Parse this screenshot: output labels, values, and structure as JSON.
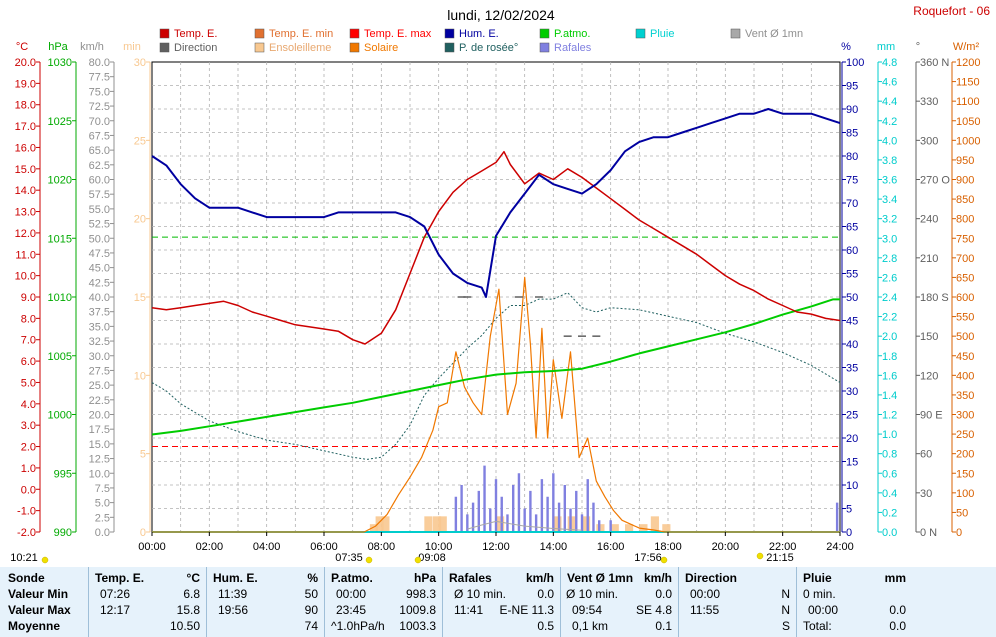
{
  "header": {
    "title": "lundi, 12/02/2024",
    "station": "Roquefort - 06"
  },
  "legend": [
    {
      "label": "Temp. E.",
      "color": "#cc0000"
    },
    {
      "label": "Temp. E. min",
      "color": "#e07030"
    },
    {
      "label": "Temp. E. max",
      "color": "#ff0000"
    },
    {
      "label": "Hum. E.",
      "color": "#0000a0"
    },
    {
      "label": "P.atmo.",
      "color": "#00cc00"
    },
    {
      "label": "Pluie",
      "color": "#00d0d0"
    },
    {
      "label": "Vent Ø 1mn",
      "color": "#a8a8a8"
    },
    {
      "label": "Direction",
      "color": "#606060"
    },
    {
      "label": "Ensoleilleme",
      "color": "#f8c890"
    },
    {
      "label": "Solaire",
      "color": "#f07800"
    },
    {
      "label": "P. de rosée°",
      "color": "#206060"
    },
    {
      "label": "Rafales",
      "color": "#8080e0"
    }
  ],
  "axes": {
    "temp": {
      "unit": "°C",
      "color": "#cc0000",
      "ticks": [
        "20.0",
        "19.0",
        "18.0",
        "17.0",
        "16.0",
        "15.0",
        "14.0",
        "13.0",
        "12.0",
        "11.0",
        "10.0",
        "9.0",
        "8.0",
        "7.0",
        "6.0",
        "5.0",
        "4.0",
        "3.0",
        "2.0",
        "1.0",
        "0.0",
        "-1.0",
        "-2.0"
      ]
    },
    "hpa": {
      "unit": "hPa",
      "color": "#00aa00",
      "ticks": [
        "1030",
        "1025",
        "1020",
        "1015",
        "1010",
        "1005",
        "1000",
        "995",
        "990"
      ]
    },
    "kmh": {
      "unit": "km/h",
      "color": "#909090",
      "ticks": [
        "80.0",
        "77.5",
        "75.0",
        "72.5",
        "70.0",
        "67.5",
        "65.0",
        "62.5",
        "60.0",
        "57.5",
        "55.0",
        "52.5",
        "50.0",
        "47.5",
        "45.0",
        "42.5",
        "40.0",
        "37.5",
        "35.0",
        "32.5",
        "30.0",
        "27.5",
        "25.0",
        "22.5",
        "20.0",
        "17.5",
        "15.0",
        "12.5",
        "10.0",
        "7.5",
        "5.0",
        "2.5",
        "0.0"
      ]
    },
    "min": {
      "unit": "min",
      "color": "#f8c890",
      "ticks": [
        "30",
        "25",
        "20",
        "15",
        "10",
        "5",
        "0"
      ]
    },
    "pct": {
      "unit": "%",
      "color": "#0000a0",
      "ticks": [
        "100",
        "95",
        "90",
        "85",
        "80",
        "75",
        "70",
        "65",
        "60",
        "55",
        "50",
        "45",
        "40",
        "35",
        "30",
        "25",
        "20",
        "15",
        "10",
        "5",
        "0"
      ]
    },
    "mm": {
      "unit": "mm",
      "color": "#00cccc",
      "ticks": [
        "4.8",
        "4.6",
        "4.4",
        "4.2",
        "4.0",
        "3.8",
        "3.6",
        "3.4",
        "3.2",
        "3.0",
        "2.8",
        "2.6",
        "2.4",
        "2.2",
        "2.0",
        "1.8",
        "1.6",
        "1.4",
        "1.2",
        "1.0",
        "0.8",
        "0.6",
        "0.4",
        "0.2",
        "0.0"
      ]
    },
    "deg": {
      "unit": "°",
      "color": "#606060",
      "ticks": [
        "360 N",
        "330",
        "300",
        "270 O",
        "240",
        "210",
        "180 S",
        "150",
        "120",
        "90 E",
        "60",
        "30",
        "0 N"
      ]
    },
    "wm2": {
      "unit": "W/m²",
      "color": "#d86000",
      "ticks": [
        "1200",
        "1150",
        "1100",
        "1050",
        "1000",
        "950",
        "900",
        "850",
        "800",
        "750",
        "700",
        "650",
        "600",
        "550",
        "500",
        "450",
        "400",
        "350",
        "300",
        "250",
        "200",
        "150",
        "100",
        "50",
        "0"
      ]
    },
    "x_ticks": [
      "00:00",
      "02:00",
      "04:00",
      "06:00",
      "08:00",
      "10:00",
      "12:00",
      "14:00",
      "16:00",
      "18:00",
      "20:00",
      "22:00",
      "24:00"
    ]
  },
  "time_markers": [
    "10:21",
    "07:35",
    "09:08",
    "17:56",
    "21:15"
  ],
  "chart_data": {
    "type": "line",
    "title": "lundi, 12/02/2024",
    "x_unit": "hour",
    "xlim": [
      0,
      24
    ],
    "series": [
      {
        "name": "Temp. E.",
        "axis": "°C",
        "color": "#cc0000",
        "x": [
          0,
          0.5,
          1,
          1.5,
          2,
          2.5,
          3,
          3.5,
          4,
          4.5,
          5,
          5.5,
          6,
          6.5,
          7,
          7.43,
          8,
          8.5,
          9,
          9.5,
          10,
          10.5,
          11,
          11.5,
          12,
          12.28,
          12.5,
          13,
          13.5,
          14,
          14.5,
          15,
          15.5,
          16,
          16.5,
          17,
          17.5,
          18,
          18.5,
          19,
          19.5,
          20,
          20.5,
          21,
          21.5,
          22,
          22.5,
          23,
          23.5,
          24
        ],
        "values": [
          8.5,
          8.4,
          8.5,
          8.6,
          8.7,
          8.8,
          8.6,
          8.3,
          8.1,
          7.9,
          7.7,
          7.6,
          7.5,
          7.4,
          7.0,
          6.8,
          7.3,
          8.4,
          10.1,
          11.8,
          13.0,
          13.9,
          14.5,
          14.9,
          15.3,
          15.8,
          15.2,
          14.3,
          14.8,
          14.5,
          15.0,
          14.6,
          14.1,
          13.6,
          13.1,
          12.6,
          12.2,
          11.8,
          11.4,
          11.0,
          10.5,
          10.0,
          9.6,
          9.3,
          8.9,
          8.6,
          8.3,
          8.2,
          8.0,
          7.9
        ]
      },
      {
        "name": "Hum. E.",
        "axis": "%",
        "color": "#0000a0",
        "x": [
          0,
          0.5,
          1,
          1.5,
          2,
          2.5,
          3,
          3.5,
          4,
          4.5,
          5,
          5.5,
          6,
          6.5,
          7,
          7.5,
          8,
          8.5,
          9,
          9.5,
          10,
          10.5,
          11,
          11.5,
          11.65,
          12,
          12.5,
          13,
          13.5,
          14,
          14.5,
          15,
          15.5,
          16,
          16.5,
          17,
          17.5,
          18,
          18.5,
          19,
          19.5,
          20,
          20.5,
          21,
          21.5,
          22,
          22.5,
          23,
          23.5,
          24
        ],
        "values": [
          80,
          78,
          74,
          71,
          69,
          69,
          69,
          68,
          67,
          67,
          67,
          67,
          67,
          68,
          68,
          68,
          68,
          68,
          67,
          65,
          59,
          55,
          53,
          52,
          50,
          63,
          68,
          72,
          76,
          74,
          73,
          72,
          74,
          77,
          81,
          83,
          84,
          84,
          85,
          86,
          87,
          88,
          89,
          89,
          90,
          89,
          89,
          89,
          88,
          87
        ]
      },
      {
        "name": "P.atmo.",
        "axis": "hPa",
        "color": "#00cc00",
        "x": [
          0,
          1,
          2,
          3,
          4,
          5,
          6,
          7,
          8,
          9,
          10,
          11,
          12,
          13,
          14,
          15,
          16,
          17,
          18,
          19,
          20,
          21,
          22,
          23,
          23.75,
          24
        ],
        "values": [
          998.3,
          998.6,
          999.0,
          999.4,
          999.8,
          1000.2,
          1000.6,
          1001.0,
          1001.5,
          1002.0,
          1002.5,
          1003.0,
          1003.4,
          1003.6,
          1003.7,
          1003.9,
          1004.5,
          1005.2,
          1005.8,
          1006.4,
          1007.0,
          1007.7,
          1008.5,
          1009.2,
          1009.8,
          1009.8
        ]
      },
      {
        "name": "P. de rosée°",
        "axis": "°C",
        "color": "#206060",
        "x": [
          0,
          0.5,
          1,
          1.5,
          2,
          3,
          4,
          5,
          6,
          7,
          7.5,
          8,
          8.5,
          9,
          9.5,
          10,
          10.5,
          11,
          11.5,
          12,
          12.5,
          13,
          13.5,
          14,
          14.5,
          15,
          15.5,
          16,
          17,
          18,
          19,
          20,
          21,
          22,
          23,
          24
        ],
        "values": [
          5.0,
          4.6,
          4.0,
          3.6,
          3.2,
          2.7,
          2.3,
          2.1,
          1.8,
          1.5,
          1.4,
          1.5,
          2.1,
          3.0,
          4.4,
          5.2,
          5.9,
          6.6,
          7.2,
          8.0,
          8.6,
          8.6,
          8.9,
          8.9,
          9.2,
          8.5,
          8.3,
          8.5,
          8.4,
          8.1,
          7.8,
          7.3,
          6.9,
          6.4,
          5.8,
          5.0
        ]
      },
      {
        "name": "Solaire",
        "axis": "W/m²",
        "color": "#f07800",
        "x": [
          0,
          7.4,
          7.8,
          8.2,
          8.6,
          9.0,
          9.4,
          9.8,
          10.0,
          10.3,
          10.6,
          10.9,
          11.2,
          11.5,
          11.8,
          12.1,
          12.4,
          12.7,
          13.0,
          13.2,
          13.4,
          13.6,
          13.8,
          14.0,
          14.3,
          14.6,
          14.9,
          15.2,
          15.5,
          15.8,
          16.1,
          16.4,
          16.7,
          17.0,
          17.5,
          17.9,
          24
        ],
        "values": [
          0,
          0,
          15,
          45,
          95,
          140,
          190,
          260,
          320,
          330,
          460,
          370,
          330,
          300,
          500,
          620,
          300,
          380,
          650,
          480,
          240,
          520,
          240,
          440,
          290,
          460,
          190,
          240,
          130,
          90,
          55,
          30,
          20,
          10,
          5,
          0,
          0
        ]
      },
      {
        "name": "Ensoleilleme",
        "axis": "min",
        "color": "#f8c890",
        "x": [
          7.6,
          7.8,
          8.0,
          9.5,
          9.8,
          10.0,
          12.0,
          14.0,
          14.5,
          15.0,
          15.5,
          16.0,
          16.5,
          17.0,
          17.4,
          17.8
        ],
        "values": [
          0.5,
          1,
          1,
          1,
          1,
          1,
          1,
          1,
          1,
          1,
          0.5,
          0.5,
          0.5,
          0.5,
          1,
          0.5
        ]
      },
      {
        "name": "Rafales",
        "axis": "km/h",
        "color": "#8080e0",
        "x": [
          10.6,
          10.8,
          11.0,
          11.2,
          11.4,
          11.6,
          11.8,
          12.0,
          12.2,
          12.4,
          12.6,
          12.8,
          13.0,
          13.2,
          13.4,
          13.6,
          13.8,
          14.0,
          14.2,
          14.4,
          14.6,
          14.8,
          15.0,
          15.2,
          15.4,
          15.6,
          16.0,
          23.9
        ],
        "values": [
          6,
          8,
          3,
          5,
          7,
          11.3,
          4,
          9,
          6,
          3,
          8,
          10,
          4,
          7,
          3,
          9,
          6,
          10,
          5,
          8,
          4,
          7,
          3,
          9,
          5,
          2,
          2,
          5
        ]
      },
      {
        "name": "Vent Ø 1mn",
        "axis": "km/h",
        "color": "#a8a8a8",
        "x": [
          11.0,
          11.5,
          12.0,
          13.0,
          14.0,
          15.0
        ],
        "values": [
          0.5,
          1.2,
          1.8,
          1.0,
          0.6,
          0.3
        ]
      },
      {
        "name": "Direction",
        "axis": "°",
        "color": "#606060",
        "x": [
          10.8,
          11.0,
          12.8,
          13.5,
          14.5,
          15.0,
          15.5
        ],
        "values": [
          180,
          180,
          180,
          180,
          150,
          150,
          150
        ]
      },
      {
        "name": "Pluie",
        "axis": "mm",
        "color": "#00cccc",
        "x": [
          0,
          24
        ],
        "values": [
          0,
          0
        ]
      }
    ],
    "references": [
      {
        "axis": "°C",
        "value": 11.8,
        "color": "#00bb00",
        "style": "dashed"
      },
      {
        "axis": "°C",
        "value": 2.0,
        "color": "#ff0000",
        "style": "dashed"
      }
    ]
  },
  "table": {
    "headers": [
      "Sonde",
      "Temp. E.",
      "°C",
      "Hum. E.",
      "%",
      "P.atmo.",
      "hPa",
      "Rafales",
      "km/h",
      "Vent Ø 1mn",
      "km/h",
      "Direction",
      "",
      "Pluie",
      "mm"
    ],
    "rows": [
      {
        "label": "Valeur Min",
        "t_time": "07:26",
        "t_val": "6.8",
        "h_time": "11:39",
        "h_val": "50",
        "p_time": "00:00",
        "p_val": "998.3",
        "r_time": "Ø 10 min.",
        "r_val": "0.0",
        "v_time": "Ø 10 min.",
        "v_val": "0.0",
        "d_time": "00:00",
        "d_val": "N",
        "pl_time": "0 min.",
        "pl_val": ""
      },
      {
        "label": "Valeur Max",
        "t_time": "12:17",
        "t_val": "15.8",
        "h_time": "19:56",
        "h_val": "90",
        "p_time": "23:45",
        "p_val": "1009.8",
        "r_time": "11:41",
        "r_val": "E-NE 11.3",
        "v_time": "09:54",
        "v_val": "SE 4.8",
        "d_time": "11:55",
        "d_val": "N",
        "pl_time": "00:00",
        "pl_val": "0.0"
      },
      {
        "label": "Moyenne",
        "t_time": "",
        "t_val": "10.50",
        "h_time": "",
        "h_val": "74",
        "p_time": "^1.0hPa/h",
        "p_val": "1003.3",
        "r_time": "",
        "r_val": "0.5",
        "v_time": "0,1 km",
        "v_val": "0.1",
        "d_time": "",
        "d_val": "S",
        "pl_time": "Total:",
        "pl_val": "0.0"
      }
    ]
  }
}
